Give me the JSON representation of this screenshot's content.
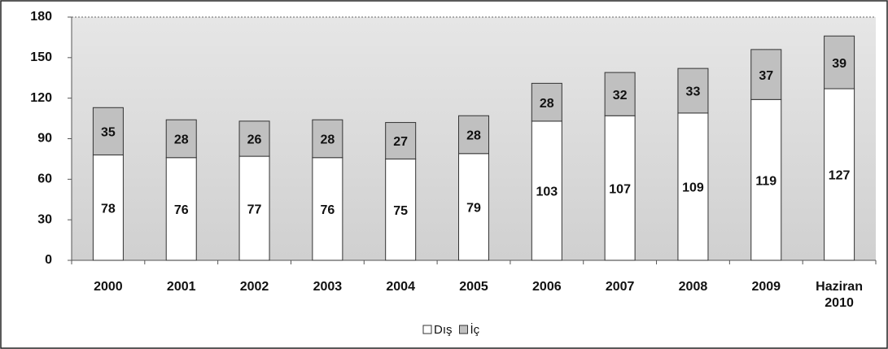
{
  "chart_data": {
    "type": "stacked_bar",
    "categories": [
      "2000",
      "2001",
      "2002",
      "2003",
      "2004",
      "2005",
      "2006",
      "2007",
      "2008",
      "2009",
      "Haziran 2010"
    ],
    "series": [
      {
        "name": "Dış",
        "color": "#ffffff",
        "values": [
          78,
          76,
          77,
          76,
          75,
          79,
          103,
          107,
          109,
          119,
          127
        ]
      },
      {
        "name": "İç",
        "color": "#c0c0c0",
        "values": [
          35,
          28,
          26,
          28,
          27,
          28,
          28,
          32,
          33,
          37,
          39
        ]
      }
    ],
    "ylim": [
      0,
      180
    ],
    "yticks": [
      0,
      30,
      60,
      90,
      120,
      150,
      180
    ],
    "legend": "bottom"
  }
}
